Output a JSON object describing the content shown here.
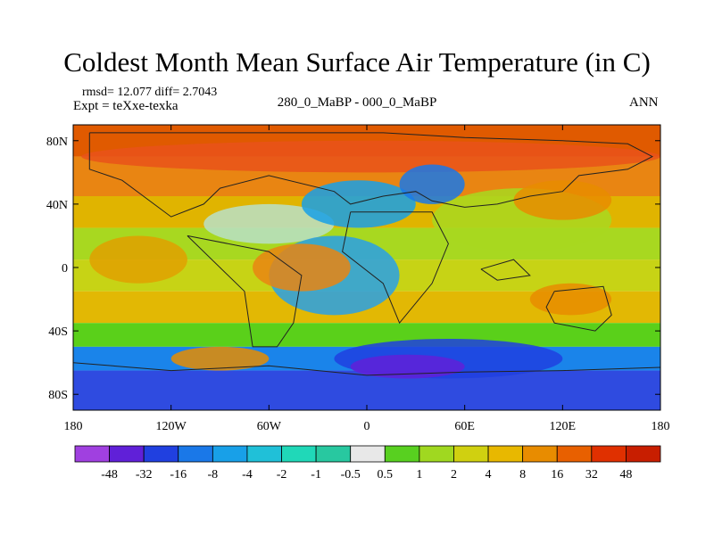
{
  "chart_data": {
    "type": "heatmap",
    "title": "Coldest Month Mean Surface Air Temperature (in C)",
    "stats_line": "rmsd= 12.077 diff= 2.7043",
    "experiment": "Expt = teXxe-texka",
    "comparison": "280_0_MaBP - 000_0_MaBP",
    "season": "ANN",
    "x_ticks": [
      "180",
      "120W",
      "60W",
      "0",
      "60E",
      "120E",
      "180"
    ],
    "x_tick_values": [
      -180,
      -120,
      -60,
      0,
      60,
      120,
      180
    ],
    "y_ticks": [
      "80N",
      "40N",
      "0",
      "40S",
      "80S"
    ],
    "y_tick_values": [
      80,
      40,
      0,
      -40,
      -80
    ],
    "xlim": [
      -180,
      180
    ],
    "ylim": [
      -90,
      90
    ],
    "colorbar_labels": [
      "-48",
      "-32",
      "-16",
      "-8",
      "-4",
      "-2",
      "-1",
      "-0.5",
      "0.5",
      "1",
      "2",
      "4",
      "8",
      "16",
      "32",
      "48"
    ],
    "colorbar_colors": [
      "#a040e0",
      "#6020d8",
      "#2040e0",
      "#1a78e8",
      "#18a0e8",
      "#20c0d8",
      "#20d8b8",
      "#28c8a0",
      "#e8e8e8",
      "#58d020",
      "#a0d820",
      "#d0d010",
      "#e8b800",
      "#e88c00",
      "#e86000",
      "#e03000",
      "#c81e00"
    ],
    "field_bands": [
      {
        "lat": [
          70,
          90
        ],
        "color": "#e05a00"
      },
      {
        "lat": [
          45,
          70
        ],
        "color": "#e98512"
      },
      {
        "lat": [
          25,
          45
        ],
        "color": "#e0b400"
      },
      {
        "lat": [
          5,
          25
        ],
        "color": "#a8d820"
      },
      {
        "lat": [
          -15,
          5
        ],
        "color": "#c7d315"
      },
      {
        "lat": [
          -35,
          -15
        ],
        "color": "#e2b804"
      },
      {
        "lat": [
          -50,
          -35
        ],
        "color": "#5ad01a"
      },
      {
        "lat": [
          -65,
          -50
        ],
        "color": "#1a84ea"
      },
      {
        "lat": [
          -90,
          -65
        ],
        "color": "#2f4be0"
      }
    ],
    "anomaly_patches": [
      {
        "lon": [
          -175,
          180
        ],
        "lat": [
          60,
          80
        ],
        "color": "#e9521a"
      },
      {
        "lon": [
          -170,
          -110
        ],
        "lat": [
          -10,
          20
        ],
        "color": "#e0a000"
      },
      {
        "lon": [
          -100,
          -20
        ],
        "lat": [
          15,
          40
        ],
        "color": "#b8e0c8"
      },
      {
        "lon": [
          -40,
          30
        ],
        "lat": [
          25,
          55
        ],
        "color": "#18a0e8"
      },
      {
        "lon": [
          -60,
          20
        ],
        "lat": [
          -30,
          20
        ],
        "color": "#28a0e8"
      },
      {
        "lon": [
          -70,
          -10
        ],
        "lat": [
          -15,
          15
        ],
        "color": "#e98512"
      },
      {
        "lon": [
          40,
          150
        ],
        "lat": [
          10,
          50
        ],
        "color": "#a8d820"
      },
      {
        "lon": [
          20,
          60
        ],
        "lat": [
          40,
          65
        ],
        "color": "#1a78e8"
      },
      {
        "lon": [
          90,
          150
        ],
        "lat": [
          30,
          55
        ],
        "color": "#e88c00"
      },
      {
        "lon": [
          100,
          150
        ],
        "lat": [
          -30,
          -10
        ],
        "color": "#e88c00"
      },
      {
        "lon": [
          -120,
          -60
        ],
        "lat": [
          -65,
          -50
        ],
        "color": "#e88c00"
      },
      {
        "lon": [
          -20,
          120
        ],
        "lat": [
          -70,
          -45
        ],
        "color": "#2040e0"
      },
      {
        "lon": [
          -10,
          60
        ],
        "lat": [
          -70,
          -55
        ],
        "color": "#6020d8"
      }
    ],
    "coastlines": [
      [
        [
          -170,
          85
        ],
        [
          -100,
          85
        ],
        [
          -40,
          85
        ],
        [
          10,
          85
        ],
        [
          60,
          82
        ],
        [
          120,
          80
        ],
        [
          160,
          78
        ],
        [
          175,
          70
        ],
        [
          160,
          62
        ],
        [
          130,
          58
        ],
        [
          120,
          48
        ],
        [
          100,
          45
        ],
        [
          80,
          40
        ],
        [
          60,
          38
        ],
        [
          40,
          42
        ],
        [
          30,
          48
        ],
        [
          10,
          45
        ],
        [
          -10,
          40
        ],
        [
          -20,
          48
        ],
        [
          -60,
          58
        ],
        [
          -90,
          50
        ],
        [
          -100,
          40
        ],
        [
          -120,
          32
        ],
        [
          -150,
          55
        ],
        [
          -170,
          62
        ],
        [
          -170,
          85
        ]
      ],
      [
        [
          -110,
          20
        ],
        [
          -60,
          10
        ],
        [
          -40,
          -5
        ],
        [
          -45,
          -35
        ],
        [
          -55,
          -50
        ],
        [
          -70,
          -50
        ],
        [
          -75,
          -15
        ],
        [
          -110,
          20
        ]
      ],
      [
        [
          -10,
          35
        ],
        [
          40,
          35
        ],
        [
          50,
          15
        ],
        [
          40,
          -10
        ],
        [
          20,
          -35
        ],
        [
          10,
          -10
        ],
        [
          -15,
          10
        ],
        [
          -10,
          35
        ]
      ],
      [
        [
          115,
          -15
        ],
        [
          145,
          -12
        ],
        [
          150,
          -30
        ],
        [
          140,
          -40
        ],
        [
          115,
          -35
        ],
        [
          110,
          -25
        ],
        [
          115,
          -15
        ]
      ],
      [
        [
          -180,
          -60
        ],
        [
          -120,
          -65
        ],
        [
          -60,
          -62
        ],
        [
          0,
          -68
        ],
        [
          60,
          -66
        ],
        [
          120,
          -65
        ],
        [
          180,
          -63
        ]
      ],
      [
        [
          70,
          -1
        ],
        [
          90,
          5
        ],
        [
          100,
          -5
        ],
        [
          80,
          -8
        ],
        [
          70,
          -1
        ]
      ]
    ]
  }
}
